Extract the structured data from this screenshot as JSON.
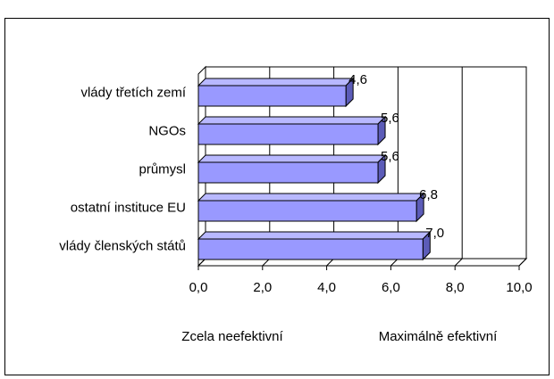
{
  "chart_data": {
    "type": "bar3d_horizontal",
    "categories": [
      "vlády třetích zemí",
      "NGOs",
      "průmysl",
      "ostatní instituce EU",
      "vlády členských států"
    ],
    "values": [
      4.6,
      5.6,
      5.6,
      6.8,
      7.0
    ],
    "value_labels": [
      "4,6",
      "5,6",
      "5,6",
      "6,8",
      "7,0"
    ],
    "color": "#9999ff",
    "xlim": [
      0,
      10
    ],
    "xticks": [
      {
        "value": 0,
        "label": "0,0"
      },
      {
        "value": 2,
        "label": "2,0"
      },
      {
        "value": 4,
        "label": "4,0"
      },
      {
        "value": 6,
        "label": "6,0"
      },
      {
        "value": 8,
        "label": "8,0"
      },
      {
        "value": 10,
        "label": "10,0"
      }
    ],
    "grid": true,
    "annotations": [
      "Zcela neefektivní",
      "Maximálně efektivní"
    ]
  }
}
